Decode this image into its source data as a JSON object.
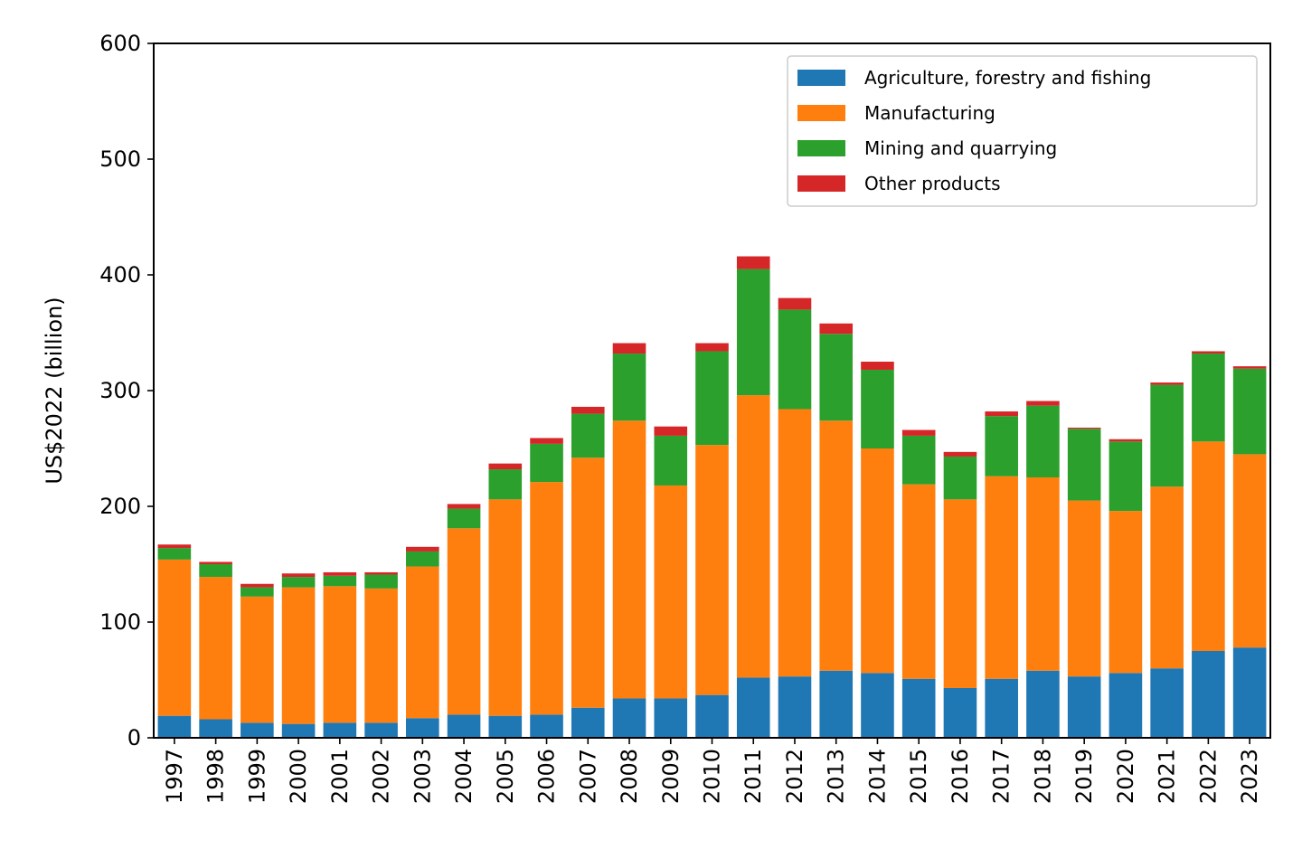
{
  "chart_data": {
    "type": "bar",
    "stacked": true,
    "title": "",
    "xlabel": "",
    "ylabel": "US$2022 (billion)",
    "ylim": [
      0,
      600
    ],
    "yticks": [
      "0",
      "100",
      "200",
      "300",
      "400",
      "500",
      "600"
    ],
    "grid": false,
    "legend_position": "top-right",
    "categories": [
      "1997",
      "1998",
      "1999",
      "2000",
      "2001",
      "2002",
      "2003",
      "2004",
      "2005",
      "2006",
      "2007",
      "2008",
      "2009",
      "2010",
      "2011",
      "2012",
      "2013",
      "2014",
      "2015",
      "2016",
      "2017",
      "2018",
      "2019",
      "2020",
      "2021",
      "2022",
      "2023"
    ],
    "series": [
      {
        "name": "Agriculture, forestry and fishing",
        "color": "#1f77b4",
        "values": [
          19,
          16,
          13,
          12,
          13,
          13,
          17,
          20,
          19,
          20,
          26,
          34,
          34,
          37,
          52,
          53,
          58,
          56,
          51,
          43,
          51,
          58,
          53,
          56,
          60,
          75,
          78
        ]
      },
      {
        "name": "Manufacturing",
        "color": "#ff7f0e",
        "values": [
          135,
          123,
          109,
          118,
          118,
          116,
          131,
          161,
          187,
          201,
          216,
          240,
          184,
          216,
          244,
          231,
          216,
          194,
          168,
          163,
          175,
          167,
          152,
          140,
          157,
          181,
          167
        ]
      },
      {
        "name": "Mining and quarrying",
        "color": "#2ca02c",
        "values": [
          10,
          11,
          8,
          9,
          9,
          12,
          13,
          17,
          26,
          33,
          38,
          58,
          43,
          81,
          109,
          86,
          75,
          68,
          42,
          37,
          52,
          62,
          62,
          60,
          88,
          76,
          74
        ]
      },
      {
        "name": "Other products",
        "color": "#d62728",
        "values": [
          3,
          2,
          3,
          3,
          3,
          2,
          4,
          4,
          5,
          5,
          6,
          9,
          8,
          7,
          11,
          10,
          9,
          7,
          5,
          4,
          4,
          4,
          1,
          2,
          2,
          2,
          2
        ]
      }
    ]
  }
}
